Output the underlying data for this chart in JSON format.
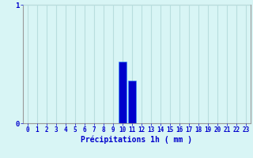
{
  "hours": [
    0,
    1,
    2,
    3,
    4,
    5,
    6,
    7,
    8,
    9,
    10,
    11,
    12,
    13,
    14,
    15,
    16,
    17,
    18,
    19,
    20,
    21,
    22,
    23
  ],
  "values": [
    0,
    0,
    0,
    0,
    0,
    0,
    0,
    0,
    0,
    0,
    0.52,
    0.36,
    0,
    0,
    0,
    0,
    0,
    0,
    0,
    0,
    0,
    0,
    0,
    0
  ],
  "bar_color": "#0000cc",
  "bar_edge_color": "#3399ff",
  "background_color": "#d8f5f5",
  "grid_color": "#b8dede",
  "text_color": "#0000cc",
  "xlabel": "Précipitations 1h ( mm )",
  "ylim": [
    0,
    1
  ],
  "xlim": [
    -0.5,
    23.5
  ],
  "yticks": [
    0,
    1
  ],
  "xtick_labels": [
    "0",
    "1",
    "2",
    "3",
    "4",
    "5",
    "6",
    "7",
    "8",
    "9",
    "10",
    "11",
    "12",
    "13",
    "14",
    "15",
    "16",
    "17",
    "18",
    "19",
    "20",
    "21",
    "22",
    "23"
  ],
  "xlabel_fontsize": 7,
  "tick_fontsize": 5.5,
  "fig_width": 3.2,
  "fig_height": 2.0,
  "dpi": 100
}
